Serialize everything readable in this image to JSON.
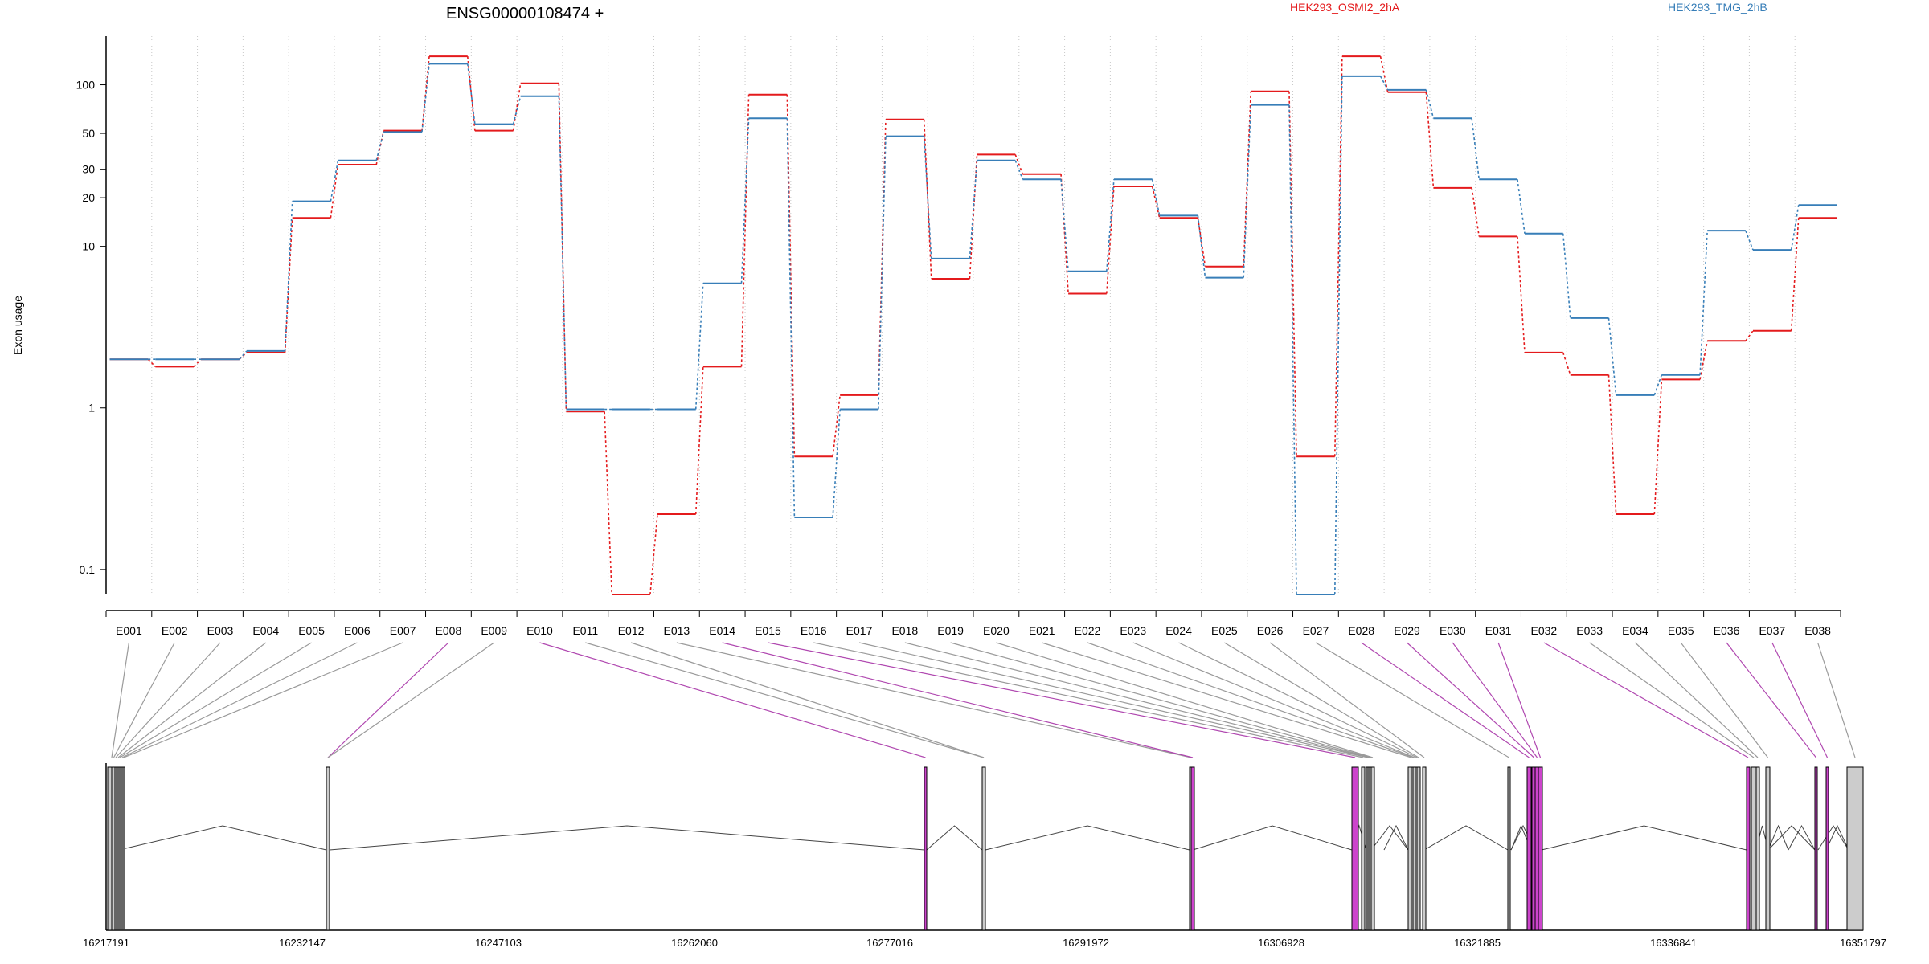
{
  "chart_data": {
    "type": "line",
    "title": "ENSG00000108474 +",
    "ylabel": "Exon usage",
    "xlabel": "",
    "y_scale": "log",
    "ylim": [
      0.07,
      200
    ],
    "y_ticks": [
      "0.1",
      "1",
      "10",
      "20",
      "30",
      "50",
      "100"
    ],
    "grid": "vertical dotted",
    "legend_position": "top-right",
    "categories": [
      "E001",
      "E002",
      "E003",
      "E004",
      "E005",
      "E006",
      "E007",
      "E008",
      "E009",
      "E010",
      "E011",
      "E012",
      "E013",
      "E014",
      "E015",
      "E016",
      "E017",
      "E018",
      "E019",
      "E020",
      "E021",
      "E022",
      "E023",
      "E024",
      "E025",
      "E026",
      "E027",
      "E028",
      "E029",
      "E030",
      "E031",
      "E032",
      "E033",
      "E034",
      "E035",
      "E036",
      "E037",
      "E038"
    ],
    "series": [
      {
        "name": "HEK293_OSMI2_2hA",
        "color": "#e41a1c",
        "values": [
          2.0,
          1.8,
          2.0,
          2.2,
          15,
          32,
          52,
          150,
          52,
          102,
          0.95,
          0.07,
          0.22,
          1.8,
          87,
          0.5,
          1.2,
          61,
          6.3,
          37,
          28,
          5.1,
          23.5,
          15,
          7.5,
          91,
          0.5,
          150,
          90,
          23,
          11.5,
          2.2,
          1.6,
          0.22,
          1.5,
          2.6,
          3.0,
          15
        ]
      },
      {
        "name": "HEK293_TMG_2hB",
        "color": "#377eb8",
        "values": [
          2.0,
          2.0,
          2.0,
          2.25,
          19,
          34,
          51,
          135,
          57,
          85,
          0.98,
          0.98,
          0.98,
          5.9,
          62,
          0.21,
          0.98,
          48,
          8.4,
          34,
          26,
          7.0,
          26,
          15.5,
          6.4,
          75,
          0.07,
          113,
          93,
          62,
          26,
          12,
          3.6,
          1.2,
          1.6,
          12.5,
          9.5,
          18
        ]
      }
    ]
  },
  "gene_model": {
    "coordinate_ticks": [
      "16217191",
      "16232147",
      "16247103",
      "16262060",
      "16277016",
      "16291972",
      "16306928",
      "16321885",
      "16336841",
      "16351797"
    ],
    "exon_colors": {
      "normal": "#cccccc",
      "significant": "#cc44cc"
    },
    "exons": [
      {
        "id": "E001",
        "significant": false
      },
      {
        "id": "E002",
        "significant": false
      },
      {
        "id": "E003",
        "significant": false
      },
      {
        "id": "E004",
        "significant": false
      },
      {
        "id": "E005",
        "significant": false
      },
      {
        "id": "E006",
        "significant": false
      },
      {
        "id": "E007",
        "significant": false
      },
      {
        "id": "E008",
        "significant": true
      },
      {
        "id": "E009",
        "significant": false
      },
      {
        "id": "E010",
        "significant": true
      },
      {
        "id": "E011",
        "significant": false
      },
      {
        "id": "E012",
        "significant": false
      },
      {
        "id": "E013",
        "significant": false
      },
      {
        "id": "E014",
        "significant": true
      },
      {
        "id": "E015",
        "significant": true
      },
      {
        "id": "E016",
        "significant": false
      },
      {
        "id": "E017",
        "significant": false
      },
      {
        "id": "E018",
        "significant": false
      },
      {
        "id": "E019",
        "significant": false
      },
      {
        "id": "E020",
        "significant": false
      },
      {
        "id": "E021",
        "significant": false
      },
      {
        "id": "E022",
        "significant": false
      },
      {
        "id": "E023",
        "significant": false
      },
      {
        "id": "E024",
        "significant": false
      },
      {
        "id": "E025",
        "significant": false
      },
      {
        "id": "E026",
        "significant": false
      },
      {
        "id": "E027",
        "significant": false
      },
      {
        "id": "E028",
        "significant": true
      },
      {
        "id": "E029",
        "significant": true
      },
      {
        "id": "E030",
        "significant": true
      },
      {
        "id": "E031",
        "significant": true
      },
      {
        "id": "E032",
        "significant": true
      },
      {
        "id": "E033",
        "significant": false
      },
      {
        "id": "E034",
        "significant": false
      },
      {
        "id": "E035",
        "significant": false
      },
      {
        "id": "E036",
        "significant": true
      },
      {
        "id": "E037",
        "significant": true
      },
      {
        "id": "E038",
        "significant": false
      }
    ]
  }
}
